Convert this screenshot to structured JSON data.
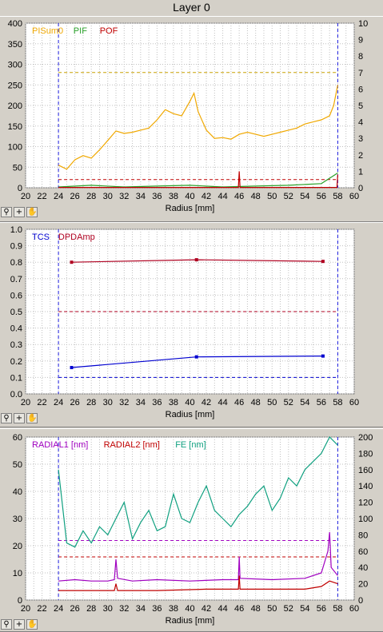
{
  "title": "Layer 0",
  "toolbar": {
    "zoom_icon": "zoom-icon",
    "crosshair_icon": "crosshair-icon",
    "pan_icon": "hand-pan-icon"
  },
  "chart_data": [
    {
      "type": "line",
      "xlabel": "Radius [mm]",
      "xlim": [
        20,
        60
      ],
      "xticks": [
        "20",
        "22",
        "24",
        "26",
        "28",
        "30",
        "32",
        "34",
        "36",
        "38",
        "40",
        "42",
        "44",
        "46",
        "48",
        "50",
        "52",
        "54",
        "56",
        "58",
        "60"
      ],
      "ylim_left": [
        0,
        400
      ],
      "yticks_left": [
        "0",
        "50",
        "100",
        "150",
        "200",
        "250",
        "300",
        "350",
        "400"
      ],
      "ylim_right": [
        0,
        10
      ],
      "yticks_right": [
        "0",
        "1",
        "2",
        "3",
        "4",
        "5",
        "6",
        "7",
        "8",
        "9",
        "10"
      ],
      "grid": true,
      "legend_position": "top-left",
      "markers_x": [
        24,
        58
      ],
      "series": [
        {
          "name": "PISum0",
          "color": "#f0a800",
          "axis": "left",
          "x": [
            24,
            25,
            26,
            27,
            28,
            29,
            30,
            31,
            32,
            33,
            34,
            35,
            36,
            37,
            38,
            39,
            40,
            40.5,
            41,
            42,
            43,
            44,
            45,
            46,
            47,
            48,
            49,
            50,
            51,
            52,
            53,
            54,
            55,
            56,
            57,
            57.5,
            58
          ],
          "values": [
            55,
            45,
            68,
            78,
            72,
            92,
            115,
            138,
            132,
            135,
            140,
            145,
            165,
            190,
            180,
            175,
            210,
            230,
            185,
            140,
            120,
            122,
            118,
            130,
            135,
            130,
            125,
            130,
            135,
            140,
            145,
            155,
            160,
            165,
            175,
            200,
            250
          ]
        },
        {
          "name": "PIF",
          "color": "#28a028",
          "axis": "right",
          "x": [
            24,
            28,
            32,
            36,
            40,
            44,
            48,
            52,
            56,
            58
          ],
          "values": [
            0.05,
            0.15,
            0.05,
            0.1,
            0.15,
            0.05,
            0.1,
            0.15,
            0.25,
            0.9
          ]
        },
        {
          "name": "POF",
          "color": "#c00000",
          "axis": "right",
          "x": [
            24,
            30,
            36,
            42,
            45.9,
            46,
            46.1,
            52,
            57.9,
            58
          ],
          "values": [
            0.02,
            0.02,
            0.02,
            0.02,
            0.02,
            1.0,
            0.02,
            0.02,
            0.02,
            0.8
          ]
        }
      ],
      "thresholds": [
        {
          "color": "#c8a000",
          "axis": "right",
          "value": 7.0
        },
        {
          "color": "#c00000",
          "axis": "right",
          "value": 0.5
        }
      ]
    },
    {
      "type": "line",
      "xlabel": "Radius [mm]",
      "xlim": [
        20,
        60
      ],
      "xticks": [
        "20",
        "22",
        "24",
        "26",
        "28",
        "30",
        "32",
        "34",
        "36",
        "38",
        "40",
        "42",
        "44",
        "46",
        "48",
        "50",
        "52",
        "54",
        "56",
        "58",
        "60"
      ],
      "ylim_left": [
        0,
        1.0
      ],
      "yticks_left": [
        "0.0",
        "0.1",
        "0.2",
        "0.3",
        "0.4",
        "0.5",
        "0.6",
        "0.7",
        "0.8",
        "0.9",
        "1.0"
      ],
      "grid": true,
      "legend_position": "top-left",
      "markers_x": [
        24,
        58
      ],
      "series": [
        {
          "name": "TCS",
          "color": "#0000d0",
          "axis": "left",
          "x": [
            25.6,
            40.8,
            56.2
          ],
          "values": [
            0.16,
            0.225,
            0.23
          ]
        },
        {
          "name": "DPDAmp",
          "color": "#b00020",
          "axis": "left",
          "x": [
            25.6,
            40.8,
            56.2
          ],
          "values": [
            0.8,
            0.815,
            0.805
          ]
        }
      ],
      "thresholds": [
        {
          "color": "#b00020",
          "axis": "left",
          "value": 0.5
        },
        {
          "color": "#0000d0",
          "axis": "left",
          "value": 0.1
        }
      ]
    },
    {
      "type": "line",
      "xlabel": "Radius [mm]",
      "xlim": [
        20,
        60
      ],
      "xticks": [
        "20",
        "22",
        "24",
        "26",
        "28",
        "30",
        "32",
        "34",
        "36",
        "38",
        "40",
        "42",
        "44",
        "46",
        "48",
        "50",
        "52",
        "54",
        "56",
        "58",
        "60"
      ],
      "ylim_left": [
        0,
        60
      ],
      "yticks_left": [
        "0",
        "10",
        "20",
        "30",
        "40",
        "50",
        "60"
      ],
      "ylim_right": [
        0,
        200
      ],
      "yticks_right": [
        "0",
        "20",
        "40",
        "60",
        "80",
        "100",
        "120",
        "140",
        "160",
        "180",
        "200"
      ],
      "grid": true,
      "legend_position": "top-left",
      "markers_x": [
        24,
        58
      ],
      "series": [
        {
          "name": "RADIAL1 [nm]",
          "color": "#a000c0",
          "axis": "left",
          "x": [
            24,
            26,
            28,
            30,
            30.8,
            31,
            31.2,
            33,
            36,
            40,
            44,
            45.9,
            46,
            46.1,
            50,
            54,
            56,
            56.8,
            57,
            57.2,
            58
          ],
          "values": [
            7,
            7.5,
            7,
            7,
            7.5,
            15,
            8,
            7,
            7.5,
            7,
            7.5,
            7.5,
            16,
            8,
            7.5,
            8,
            10,
            18,
            25,
            12,
            9
          ]
        },
        {
          "name": "RADIAL2 [nm]",
          "color": "#c00000",
          "axis": "left",
          "x": [
            24,
            28,
            30.8,
            31,
            31.2,
            36,
            42,
            45.9,
            46,
            46.1,
            50,
            54,
            56,
            57,
            58
          ],
          "values": [
            3.5,
            3.5,
            3.5,
            6,
            3.5,
            3.5,
            4,
            4,
            9,
            4,
            4,
            4,
            5,
            7,
            6
          ]
        },
        {
          "name": "FE [nm]",
          "color": "#10a080",
          "axis": "right",
          "x": [
            24,
            25,
            26,
            27,
            28,
            29,
            30,
            31,
            32,
            33,
            34,
            35,
            36,
            37,
            38,
            39,
            40,
            41,
            42,
            43,
            44,
            45,
            46,
            47,
            48,
            49,
            50,
            51,
            52,
            53,
            54,
            55,
            56,
            57,
            58
          ],
          "values": [
            160,
            70,
            65,
            85,
            70,
            90,
            80,
            100,
            120,
            75,
            95,
            110,
            85,
            90,
            130,
            100,
            95,
            120,
            140,
            110,
            100,
            90,
            105,
            115,
            130,
            140,
            110,
            125,
            150,
            140,
            160,
            170,
            180,
            200,
            190
          ]
        }
      ],
      "thresholds": [
        {
          "color": "#a000c0",
          "axis": "right",
          "value": 73
        },
        {
          "color": "#c00000",
          "axis": "right",
          "value": 53
        }
      ]
    }
  ]
}
